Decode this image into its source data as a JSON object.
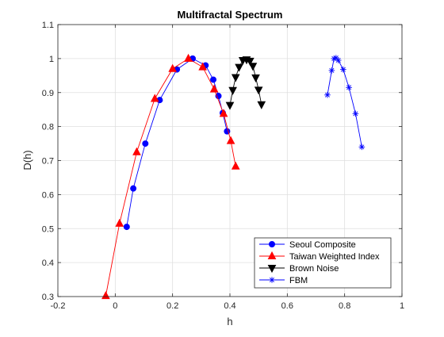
{
  "chart_data": {
    "type": "line",
    "title": "Multifractal Spectrum",
    "xlabel": "h",
    "ylabel": "D(h)",
    "xlim": [
      -0.2,
      1.0
    ],
    "ylim": [
      0.3,
      1.1
    ],
    "xticks": [
      "-0.2",
      "0",
      "0.2",
      "0.4",
      "0.6",
      "0.8",
      "1"
    ],
    "yticks": [
      "0.3",
      "0.4",
      "0.5",
      "0.6",
      "0.7",
      "0.8",
      "0.9",
      "1",
      "1.1"
    ],
    "xtick_values": [
      -0.2,
      0,
      0.2,
      0.4,
      0.6,
      0.8,
      1.0
    ],
    "ytick_values": [
      0.3,
      0.4,
      0.5,
      0.6,
      0.7,
      0.8,
      0.9,
      1.0,
      1.1
    ],
    "grid": true,
    "legend_position": "bottom-right",
    "series": [
      {
        "name": "Seoul Composite",
        "color": "#0000ff",
        "marker": "circle",
        "x": [
          0.04,
          0.063,
          0.105,
          0.155,
          0.215,
          0.27,
          0.315,
          0.342,
          0.36,
          0.375,
          0.39
        ],
        "y": [
          0.505,
          0.618,
          0.75,
          0.878,
          0.968,
          1.0,
          0.98,
          0.938,
          0.89,
          0.84,
          0.786
        ]
      },
      {
        "name": "Taiwan Weighted Index",
        "color": "#ff0000",
        "marker": "triangle-up",
        "x": [
          -0.033,
          0.015,
          0.075,
          0.138,
          0.2,
          0.255,
          0.305,
          0.345,
          0.378,
          0.403,
          0.42
        ],
        "y": [
          0.302,
          0.515,
          0.725,
          0.882,
          0.97,
          1.0,
          0.975,
          0.91,
          0.838,
          0.758,
          0.683
        ]
      },
      {
        "name": "Brown Noise",
        "color": "#000000",
        "marker": "triangle-down",
        "x": [
          0.4,
          0.41,
          0.42,
          0.432,
          0.445,
          0.458,
          0.47,
          0.48,
          0.49,
          0.5,
          0.51
        ],
        "y": [
          0.863,
          0.907,
          0.945,
          0.975,
          0.995,
          0.997,
          0.993,
          0.978,
          0.944,
          0.908,
          0.865
        ]
      },
      {
        "name": "FBM",
        "color": "#0000ff",
        "marker": "asterisk",
        "x": [
          0.74,
          0.755,
          0.763,
          0.77,
          0.778,
          0.795,
          0.815,
          0.838,
          0.86
        ],
        "y": [
          0.893,
          0.965,
          1.0,
          1.002,
          0.995,
          0.968,
          0.915,
          0.838,
          0.74
        ]
      }
    ]
  }
}
